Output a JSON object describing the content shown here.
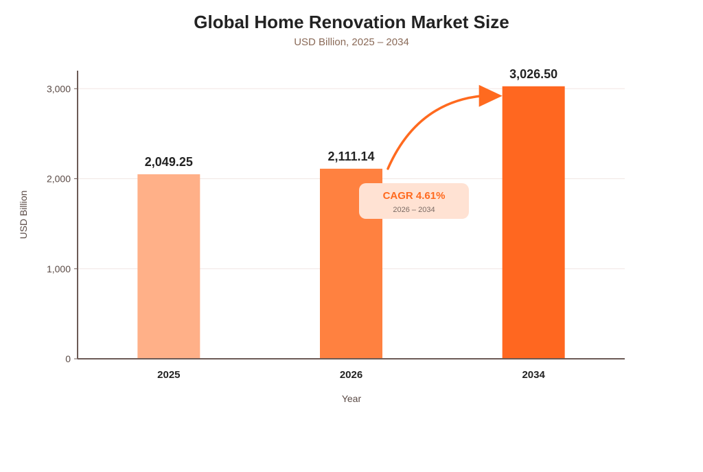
{
  "chart_data": {
    "type": "bar",
    "title": "Global Home Renovation Market Size",
    "subtitle": "USD Billion, 2025 – 2034",
    "xlabel": "Year",
    "ylabel": "USD Billion",
    "categories": [
      "2025",
      "2026",
      "2034"
    ],
    "values": [
      2049.25,
      2111.14,
      3026.5
    ],
    "value_labels": [
      "2,049.25",
      "2,111.14",
      "3,026.50"
    ],
    "bar_colors": [
      "#ffb088",
      "#ff8140",
      "#ff6720"
    ],
    "ylim": [
      0,
      3200
    ],
    "yticks": [
      0,
      1000,
      2000,
      3000
    ],
    "ytick_labels": [
      "0",
      "1,000",
      "2,000",
      "3,000"
    ],
    "grid": true,
    "annotation": {
      "title": "CAGR 4.61%",
      "subtitle": "2026 – 2034",
      "from_category": "2026",
      "to_category": "2034",
      "color": "#ff6a1f",
      "box_color": "#ffe2d3"
    }
  },
  "colors": {
    "title": "#222222",
    "subtitle": "#8a6a58",
    "axis": "#6b5a55",
    "grid": "#f1e6e3",
    "tick_label": "#5a4a45",
    "bar_label": "#222222"
  }
}
